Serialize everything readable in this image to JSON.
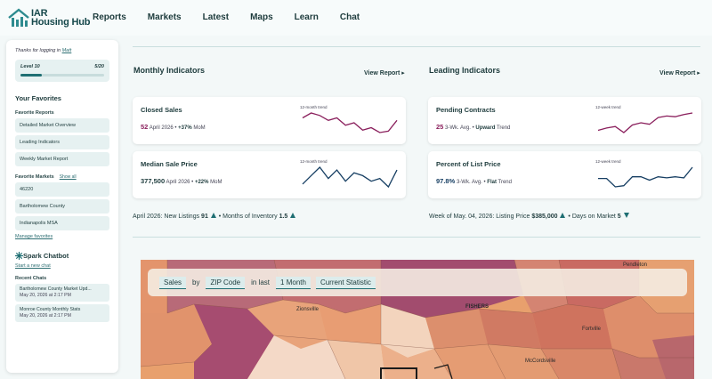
{
  "app": {
    "logo_line1": "IAR",
    "logo_line2": "Housing Hub"
  },
  "nav": {
    "items": [
      "Reports",
      "Markets",
      "Latest",
      "Maps",
      "Learn",
      "Chat"
    ]
  },
  "sidebar": {
    "thanks_prefix": "Thanks for logging in",
    "user_name": "Matt",
    "level_label": "Level 10",
    "level_progress_text": "5/20",
    "level_progress_fraction": 0.25,
    "favorites_title": "Your Favorites",
    "favorite_reports_label": "Favorite Reports",
    "favorite_reports": [
      "Detailed Market Overview",
      "Leading Indicators",
      "Weekly Market Report"
    ],
    "favorite_markets_label": "Favorite Markets",
    "show_all_label": "Show all",
    "favorite_markets": [
      "46220",
      "Bartholomew County",
      "Indianapolis MSA"
    ],
    "manage_favorites_label": "Manage favorites",
    "chatbot_title": "Spark Chatbot",
    "new_chat_label": "Start a new chat",
    "recent_chats_label": "Recent Chats",
    "recent_chats": [
      {
        "title": "Bartholomew County Market Upd...",
        "date": "May 20, 2026 at 2:17 PM"
      },
      {
        "title": "Monroe County Monthly Stats",
        "date": "May 20, 2026 at 2:17 PM"
      }
    ]
  },
  "monthly": {
    "title": "Monthly Indicators",
    "view_report_label": "View Report ▸",
    "cards": [
      {
        "title": "Closed Sales",
        "value": "52",
        "period": "April 2026 •",
        "change": "+37%",
        "change_suffix": "MoM",
        "trend_label": "12-month trend",
        "value_color": "#8a1f5c",
        "line_color": "#8a1f5c",
        "trend": [
          7,
          8,
          7.5,
          6.5,
          7,
          5.5,
          6,
          4.5,
          5,
          4,
          4.3,
          6.5
        ]
      },
      {
        "title": "Median Sale Price",
        "value": "377,500",
        "period": "April 2026 •",
        "change": "+22%",
        "change_suffix": "MoM",
        "trend_label": "12-month trend",
        "value_color": "#1d3b3c",
        "line_color": "#173f63",
        "trend": [
          4,
          5.5,
          7,
          5,
          6.5,
          4.5,
          6,
          5.5,
          4.5,
          5,
          3.5,
          6.5
        ]
      }
    ],
    "footer_prefix": "April 2026: New Listings",
    "footer_value1": "91",
    "footer_middle": "• Months of Inventory",
    "footer_value2": "1.5"
  },
  "leading": {
    "title": "Leading Indicators",
    "view_report_label": "View Report ▸",
    "cards": [
      {
        "title": "Pending Contracts",
        "value": "25",
        "period": "3-Wk. Avg. •",
        "change": "Upward",
        "change_suffix": "Trend",
        "trend_label": "12-week trend",
        "value_color": "#8a1f5c",
        "line_color": "#8a1f5c",
        "trend": [
          4.5,
          4.8,
          5,
          4.2,
          5.2,
          5.5,
          5.3,
          6.2,
          6.4,
          6.3,
          6.6,
          6.8
        ]
      },
      {
        "title": "Percent of List Price",
        "value": "97.8%",
        "period": "3-Wk. Avg. •",
        "change": "Flat",
        "change_suffix": "Trend",
        "trend_label": "12-week trend",
        "value_color": "#173f63",
        "line_color": "#173f63",
        "trend": [
          5.5,
          5.5,
          4,
          4.2,
          5.8,
          5.8,
          5.2,
          5.8,
          5.6,
          5.8,
          5.6,
          7.5
        ]
      }
    ],
    "footer_prefix": "Week of May. 04, 2026: Listing Price",
    "footer_value1": "$385,000",
    "footer_middle": "• Days on Market",
    "footer_value2": "5"
  },
  "map": {
    "query": {
      "metric": "Sales",
      "by_word": "by",
      "group": "ZIP Code",
      "in_last_word": "in last",
      "period": "1 Month",
      "statistic": "Current Statistic"
    },
    "place_labels": [
      "Pendleton",
      "Zionsville",
      "FISHERS",
      "Fortville",
      "McCordsville"
    ]
  },
  "colors": {
    "accent": "#1f6f73",
    "brand": "#17494c"
  }
}
